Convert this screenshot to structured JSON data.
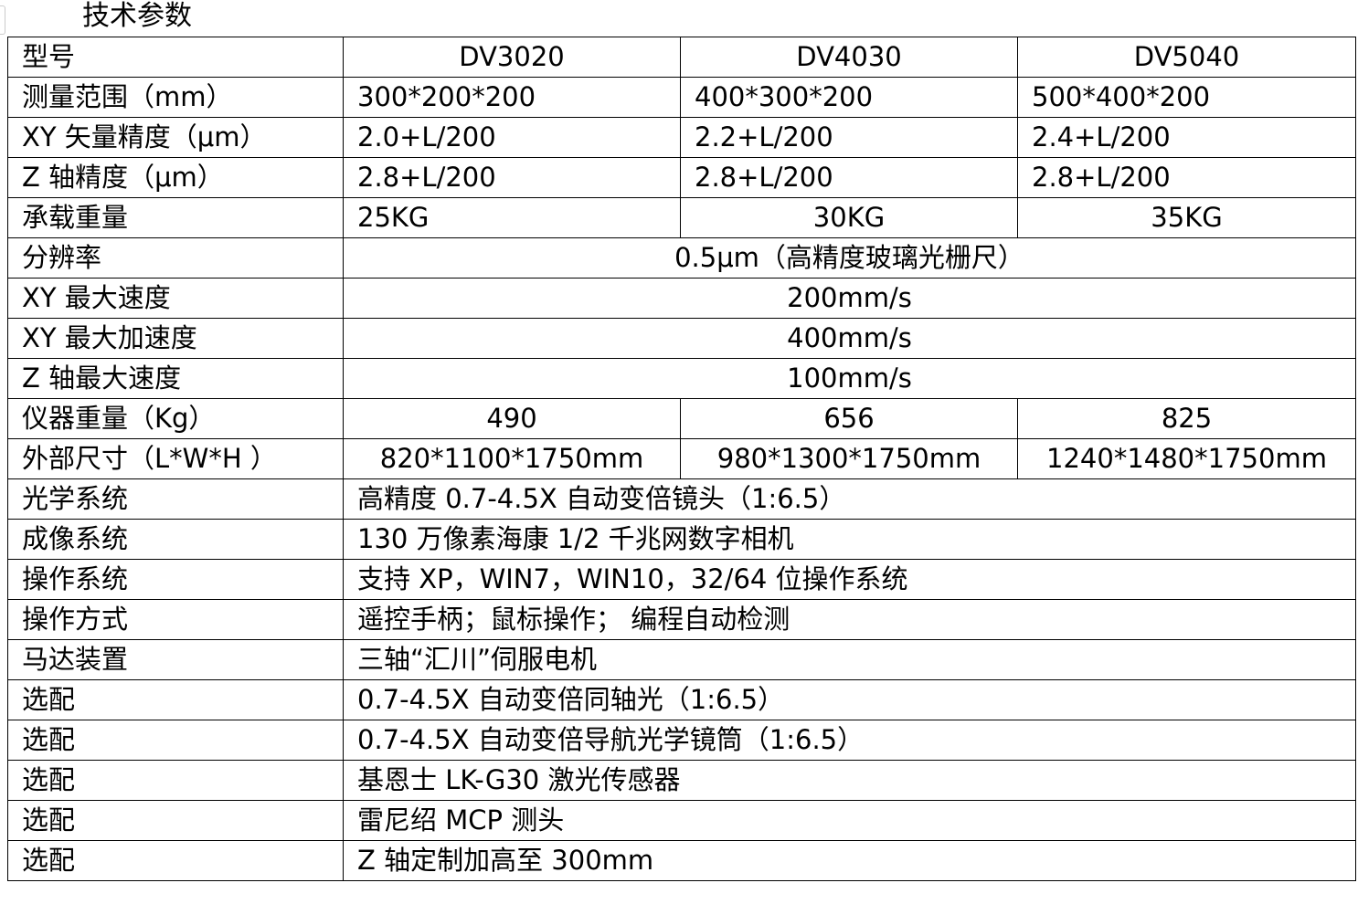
{
  "title": "技术参数",
  "header": {
    "label": "型号",
    "models": [
      "DV3020",
      "DV4030",
      "DV5040"
    ]
  },
  "rows": [
    {
      "label": "测量范围（mm）",
      "values": [
        "300*200*200",
        "400*300*200",
        "500*400*200"
      ]
    },
    {
      "label": "XY 矢量精度（μm）",
      "values": [
        "2.0+L/200",
        "2.2+L/200",
        "2.4+L/200"
      ]
    },
    {
      "label": "Z 轴精度（μm）",
      "values": [
        "2.8+L/200",
        "2.8+L/200",
        "2.8+L/200"
      ]
    },
    {
      "label": "承载重量",
      "values": [
        "25KG",
        "30KG",
        "35KG"
      ]
    },
    {
      "label": "分辨率",
      "values": [
        "0.5μm（高精度玻璃光栅尺）"
      ]
    },
    {
      "label": "XY 最大速度",
      "values": [
        "200mm/s"
      ]
    },
    {
      "label": "XY 最大加速度",
      "values": [
        "400mm/s"
      ]
    },
    {
      "label": "Z 轴最大速度",
      "values": [
        "100mm/s"
      ]
    },
    {
      "label": "仪器重量（Kg）",
      "values": [
        "490",
        "656",
        "825"
      ]
    },
    {
      "label": "外部尺寸（L*W*H ）",
      "values": [
        "820*1100*1750mm",
        "980*1300*1750mm",
        "1240*1480*1750mm"
      ]
    },
    {
      "label": "光学系统",
      "values": [
        "高精度 0.7-4.5X 自动变倍镜头（1:6.5）"
      ]
    },
    {
      "label": "成像系统",
      "values": [
        "130 万像素海康 1/2 千兆网数字相机"
      ]
    },
    {
      "label": "操作系统",
      "values": [
        "支持 XP，WIN7，WIN10，32/64 位操作系统"
      ]
    },
    {
      "label": "操作方式",
      "values": [
        "遥控手柄；鼠标操作； 编程自动检测"
      ]
    },
    {
      "label": "马达装置",
      "values": [
        "三轴“汇川”伺服电机"
      ]
    },
    {
      "label": "选配",
      "values": [
        "0.7-4.5X 自动变倍同轴光（1:6.5）"
      ]
    },
    {
      "label": "选配",
      "values": [
        "0.7-4.5X 自动变倍导航光学镜筒（1:6.5）"
      ]
    },
    {
      "label": "选配",
      "values": [
        "基恩士 LK-G30 激光传感器"
      ]
    },
    {
      "label": "选配",
      "values": [
        "雷尼绍 MCP 测头"
      ]
    },
    {
      "label": "选配",
      "values": [
        "Z 轴定制加高至 300mm"
      ]
    }
  ]
}
